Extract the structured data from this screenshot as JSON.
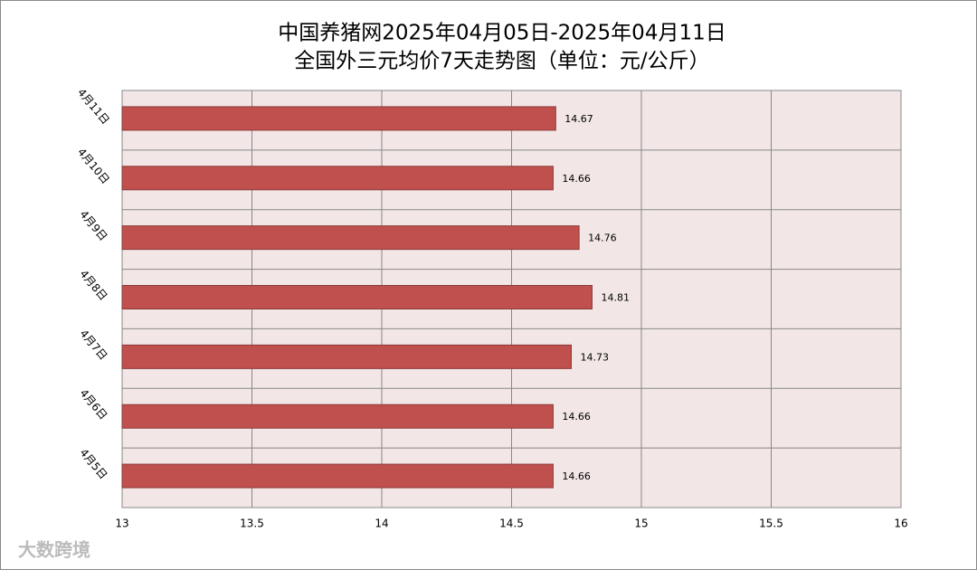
{
  "chart_data": {
    "type": "bar",
    "orientation": "horizontal",
    "title": "中国养猪网2025年04月05日-2025年04月11日",
    "subtitle": "全国外三元均价7天走势图（单位：元/公斤）",
    "categories": [
      "4月11日",
      "4月10日",
      "4月9日",
      "4月8日",
      "4月7日",
      "4月6日",
      "4月5日"
    ],
    "values": [
      14.67,
      14.66,
      14.76,
      14.81,
      14.73,
      14.66,
      14.66
    ],
    "color": "#c0504d",
    "xlim": [
      13,
      16
    ],
    "xticks": [
      13,
      13.5,
      14,
      14.5,
      15,
      15.5,
      16
    ],
    "grid": true
  },
  "watermark": "大数跨境"
}
